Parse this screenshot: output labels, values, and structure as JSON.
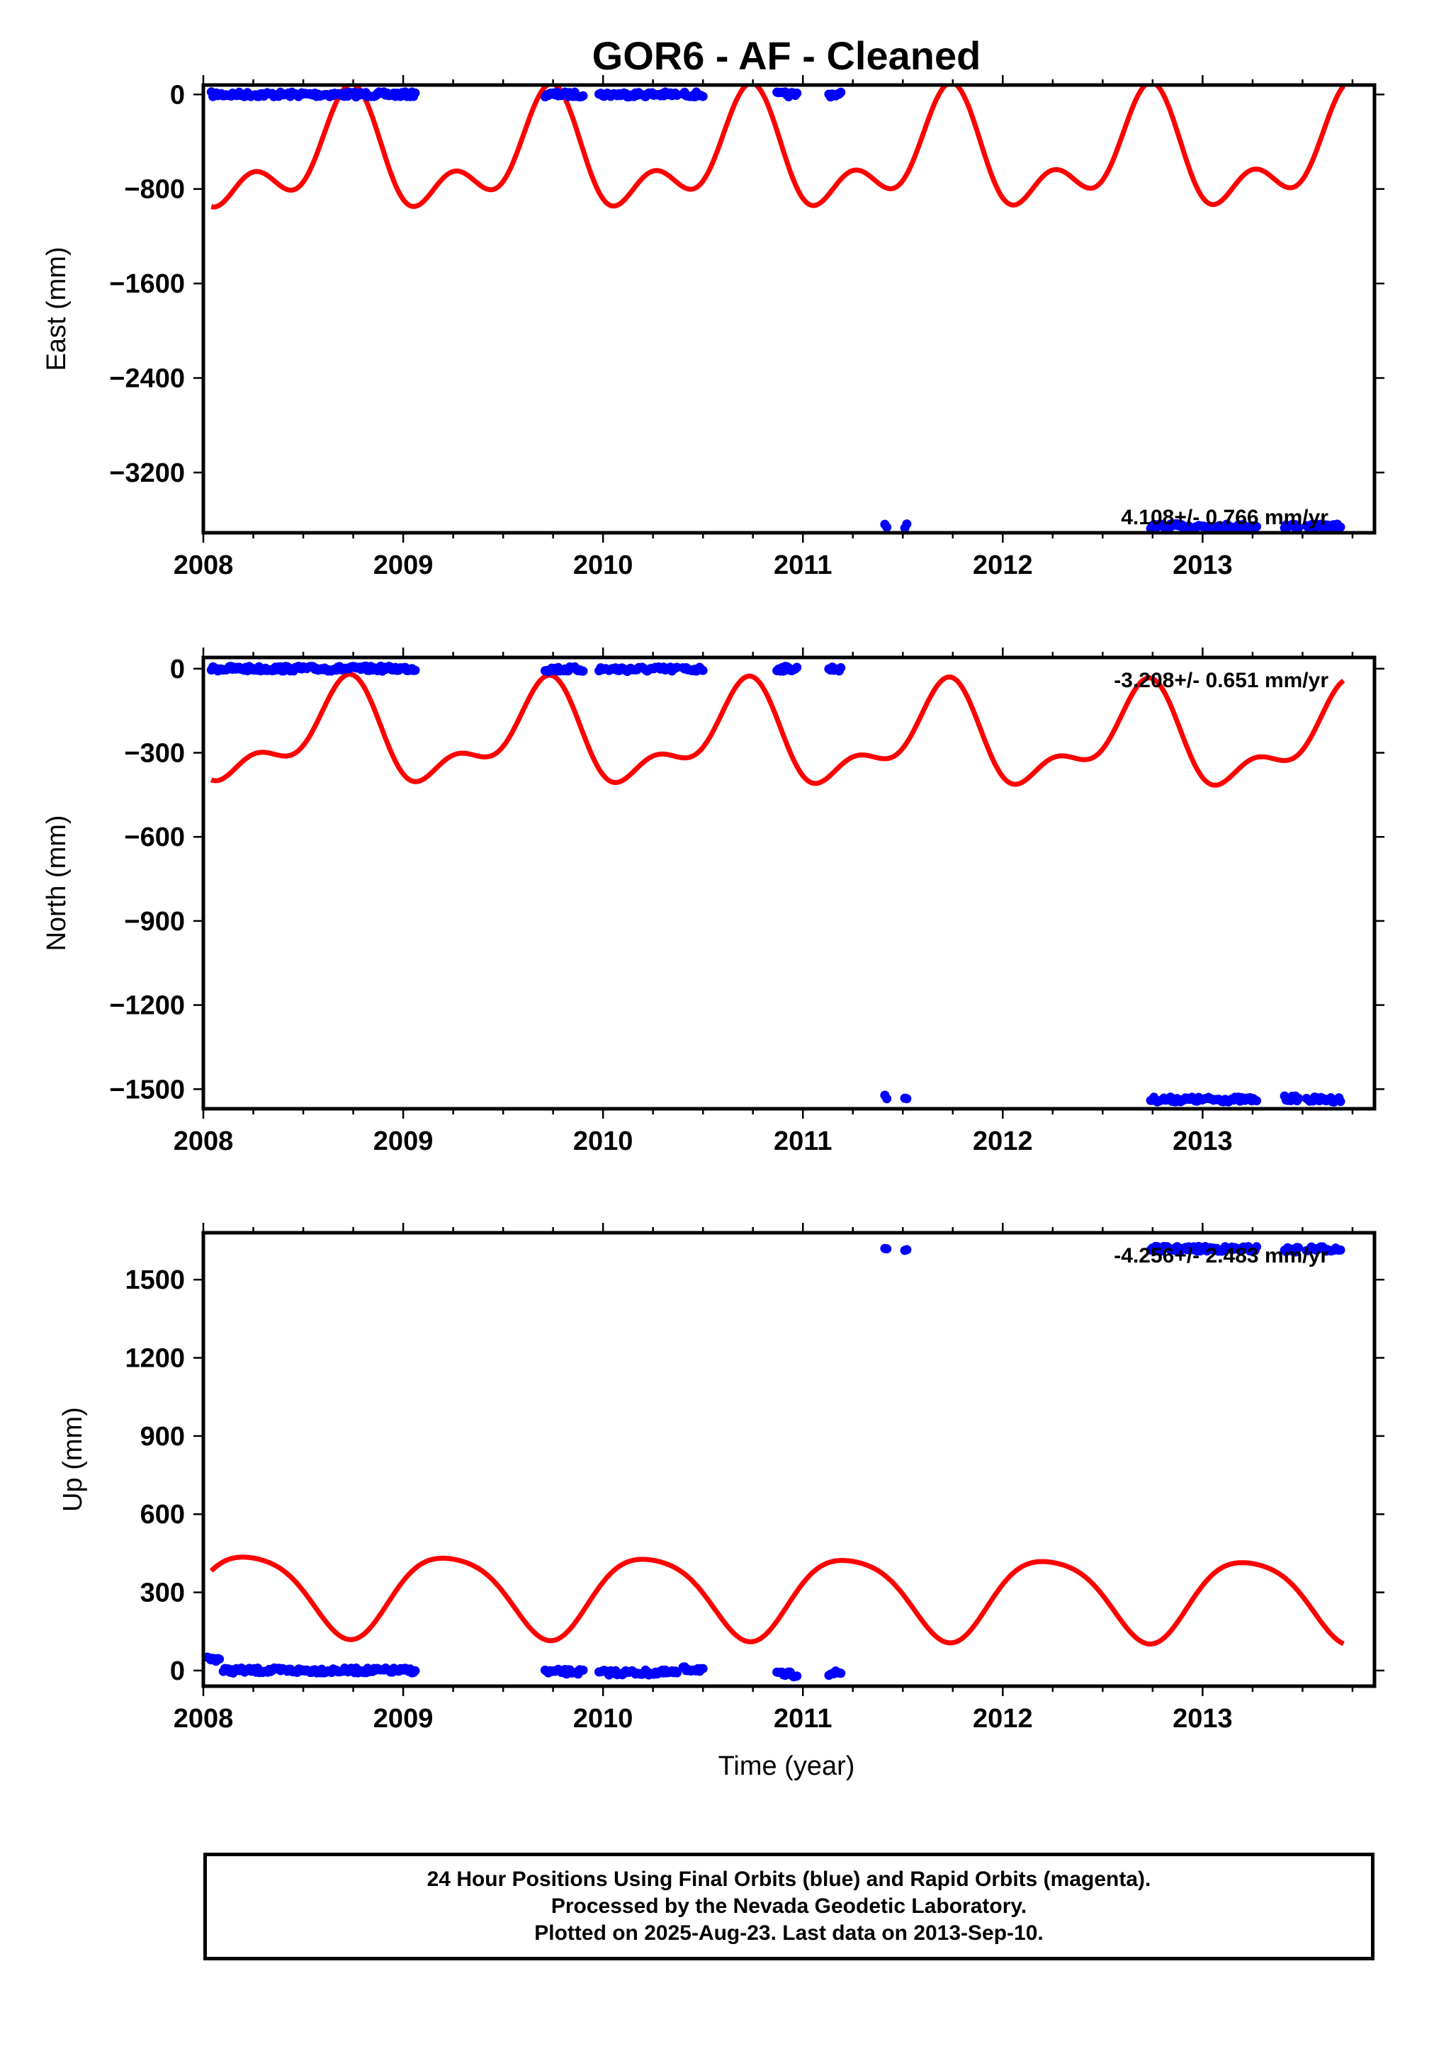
{
  "chart_data": {
    "title": "GOR6  - AF - Cleaned",
    "type": "scatter",
    "xlabel": "Time (year)",
    "xlim": [
      2008.0,
      2013.86
    ],
    "x_ticks": [
      "2008",
      "2009",
      "2010",
      "2011",
      "2012",
      "2013"
    ],
    "colors": {
      "final_orbits": "#0000ff",
      "model": "#ff0000",
      "frame": "#000000"
    },
    "panels": [
      {
        "ylabel": "East (mm)",
        "ylim": [
          -3710,
          80
        ],
        "y_ticks": [
          0,
          -800,
          -1600,
          -2400,
          -3200
        ],
        "y_tick_labels": [
          "0",
          "−800",
          "−1600",
          "−2400",
          "−3200"
        ],
        "rate_text": "4.108+/- 0.766 mm/yr",
        "observations": [
          {
            "x0": 2008.04,
            "x1": 2009.06,
            "y": 0
          },
          {
            "x0": 2009.71,
            "x1": 2009.9,
            "y": 0
          },
          {
            "x0": 2009.98,
            "x1": 2010.37,
            "y": 0
          },
          {
            "x0": 2010.4,
            "x1": 2010.5,
            "y": 0
          },
          {
            "x0": 2010.87,
            "x1": 2010.97,
            "y": 0
          },
          {
            "x0": 2011.13,
            "x1": 2011.19,
            "y": 0
          },
          {
            "x0": 2011.41,
            "x1": 2011.42,
            "y": -3650
          },
          {
            "x0": 2011.51,
            "x1": 2011.52,
            "y": -3650
          },
          {
            "x0": 2012.74,
            "x1": 2013.27,
            "y": -3655
          },
          {
            "x0": 2013.41,
            "x1": 2013.48,
            "y": -3653
          },
          {
            "x0": 2013.52,
            "x1": 2013.69,
            "y": -3658
          }
        ],
        "model": {
          "offset": -540,
          "trend": 4.108,
          "annual": [
            -75,
            -370
          ],
          "semiannual": [
            -265,
            0
          ]
        }
      },
      {
        "ylabel": "North (mm)",
        "ylim": [
          -1570,
          40
        ],
        "y_ticks": [
          0,
          -300,
          -600,
          -900,
          -1200,
          -1500
        ],
        "y_tick_labels": [
          "0",
          "−300",
          "−600",
          "−900",
          "−1200",
          "−1500"
        ],
        "rate_text": "-3.208+/- 0.651 mm/yr",
        "observations": [
          {
            "x0": 2008.04,
            "x1": 2009.06,
            "y": 0
          },
          {
            "x0": 2009.71,
            "x1": 2009.9,
            "y": -2
          },
          {
            "x0": 2009.98,
            "x1": 2010.37,
            "y": -2
          },
          {
            "x0": 2010.4,
            "x1": 2010.5,
            "y": -2
          },
          {
            "x0": 2010.87,
            "x1": 2010.97,
            "y": 0
          },
          {
            "x0": 2011.13,
            "x1": 2011.19,
            "y": 0
          },
          {
            "x0": 2011.41,
            "x1": 2011.42,
            "y": -1530
          },
          {
            "x0": 2011.51,
            "x1": 2011.52,
            "y": -1532
          },
          {
            "x0": 2012.74,
            "x1": 2013.27,
            "y": -1537
          },
          {
            "x0": 2013.41,
            "x1": 2013.48,
            "y": -1533
          },
          {
            "x0": 2013.52,
            "x1": 2013.69,
            "y": -1537
          }
        ],
        "model": {
          "offset": -252,
          "trend": -3.208,
          "annual": [
            -50,
            -142
          ],
          "semiannual": [
            -80,
            0
          ]
        }
      },
      {
        "ylabel": "Up (mm)",
        "ylim": [
          -60,
          1680
        ],
        "y_ticks": [
          0,
          300,
          600,
          900,
          1200,
          1500
        ],
        "y_tick_labels": [
          "0",
          "300",
          "600",
          "900",
          "1200",
          "1500"
        ],
        "rate_text": "-4.256+/- 2.483 mm/yr",
        "observations": [
          {
            "x0": 2008.02,
            "x1": 2008.08,
            "y": 45
          },
          {
            "x0": 2008.1,
            "x1": 2009.06,
            "y": 0
          },
          {
            "x0": 2009.71,
            "x1": 2009.9,
            "y": -5
          },
          {
            "x0": 2009.98,
            "x1": 2010.37,
            "y": -8
          },
          {
            "x0": 2010.4,
            "x1": 2010.5,
            "y": 5
          },
          {
            "x0": 2010.87,
            "x1": 2010.97,
            "y": -15
          },
          {
            "x0": 2011.13,
            "x1": 2011.19,
            "y": -10
          },
          {
            "x0": 2011.41,
            "x1": 2011.42,
            "y": 1620
          },
          {
            "x0": 2011.51,
            "x1": 2011.52,
            "y": 1615
          },
          {
            "x0": 2012.74,
            "x1": 2013.27,
            "y": 1618
          },
          {
            "x0": 2013.41,
            "x1": 2013.48,
            "y": 1615
          },
          {
            "x0": 2013.52,
            "x1": 2013.69,
            "y": 1618
          }
        ],
        "model": {
          "offset": 290,
          "trend": -4.256,
          "annual": [
            20,
            155
          ],
          "semiannual": [
            25,
            0
          ]
        }
      }
    ]
  },
  "footer": {
    "line1": "24 Hour Positions Using Final Orbits (blue) and Rapid Orbits (magenta).",
    "line2": "Processed by the Nevada Geodetic Laboratory.",
    "line3": "Plotted on 2025-Aug-23. Last data on 2013-Sep-10."
  }
}
